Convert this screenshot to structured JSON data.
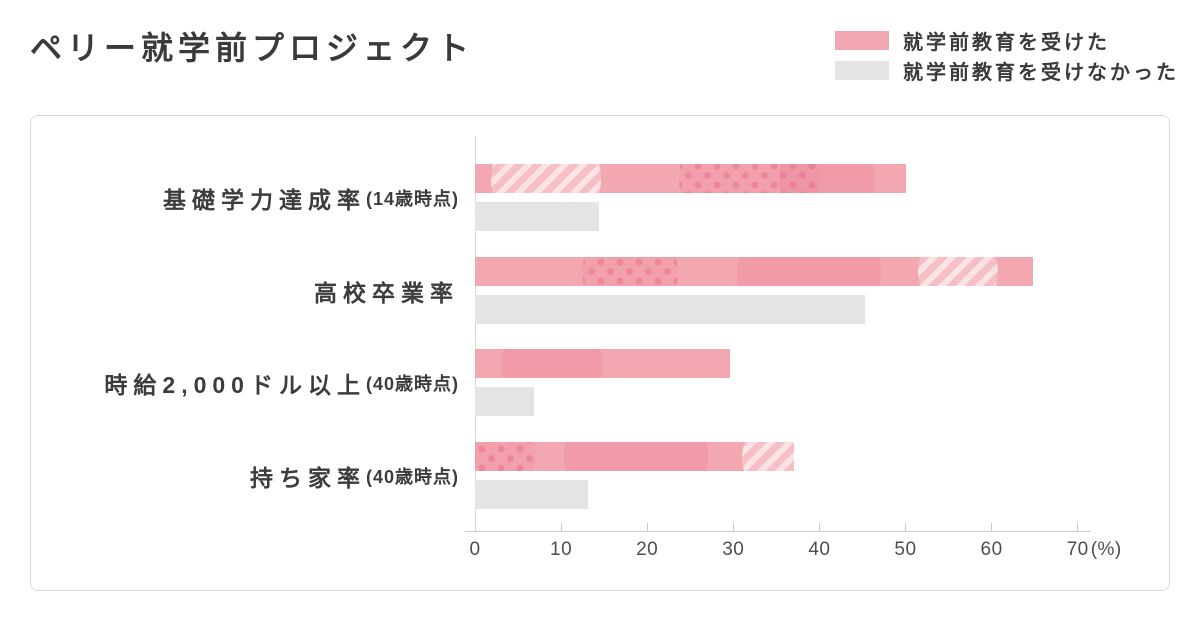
{
  "header": {
    "title": "ペリー就学前プロジェクト"
  },
  "legend": {
    "items": [
      {
        "label": "就学前教育を受けた",
        "color": "#F3A8B1"
      },
      {
        "label": "就学前教育を受けなかった",
        "color": "#E4E4E4"
      }
    ]
  },
  "chart_data": {
    "type": "bar",
    "orientation": "horizontal",
    "title": "ペリー就学前プロジェクト",
    "categories": [
      {
        "label": "基礎学力達成率",
        "suffix": "(14歳時点)"
      },
      {
        "label": "高校卒業率",
        "suffix": ""
      },
      {
        "label": "時給2,000ドル以上",
        "suffix": "(40歳時点)"
      },
      {
        "label": "持ち家率",
        "suffix": "(40歳時点)"
      }
    ],
    "series": [
      {
        "name": "就学前教育を受けた",
        "color": "#F3A8B1",
        "values": [
          50,
          64.8,
          29.6,
          37
        ]
      },
      {
        "name": "就学前教育を受けなかった",
        "color": "#E4E4E4",
        "values": [
          14.4,
          45.3,
          6.9,
          13.1
        ]
      }
    ],
    "xlim": [
      0,
      70
    ],
    "ticks": [
      0,
      10,
      20,
      30,
      40,
      50,
      60,
      70
    ],
    "axis_suffix": "(%)",
    "xlabel": "",
    "ylabel": "",
    "grid": false,
    "legend_position": "top-right"
  },
  "colors": {
    "title_text": "#3A3A3A",
    "label_text": "#3C3C3C",
    "axis_text": "#4E4E4E",
    "axis_line": "#CCCCCC",
    "panel_border": "#DBDBDB"
  }
}
